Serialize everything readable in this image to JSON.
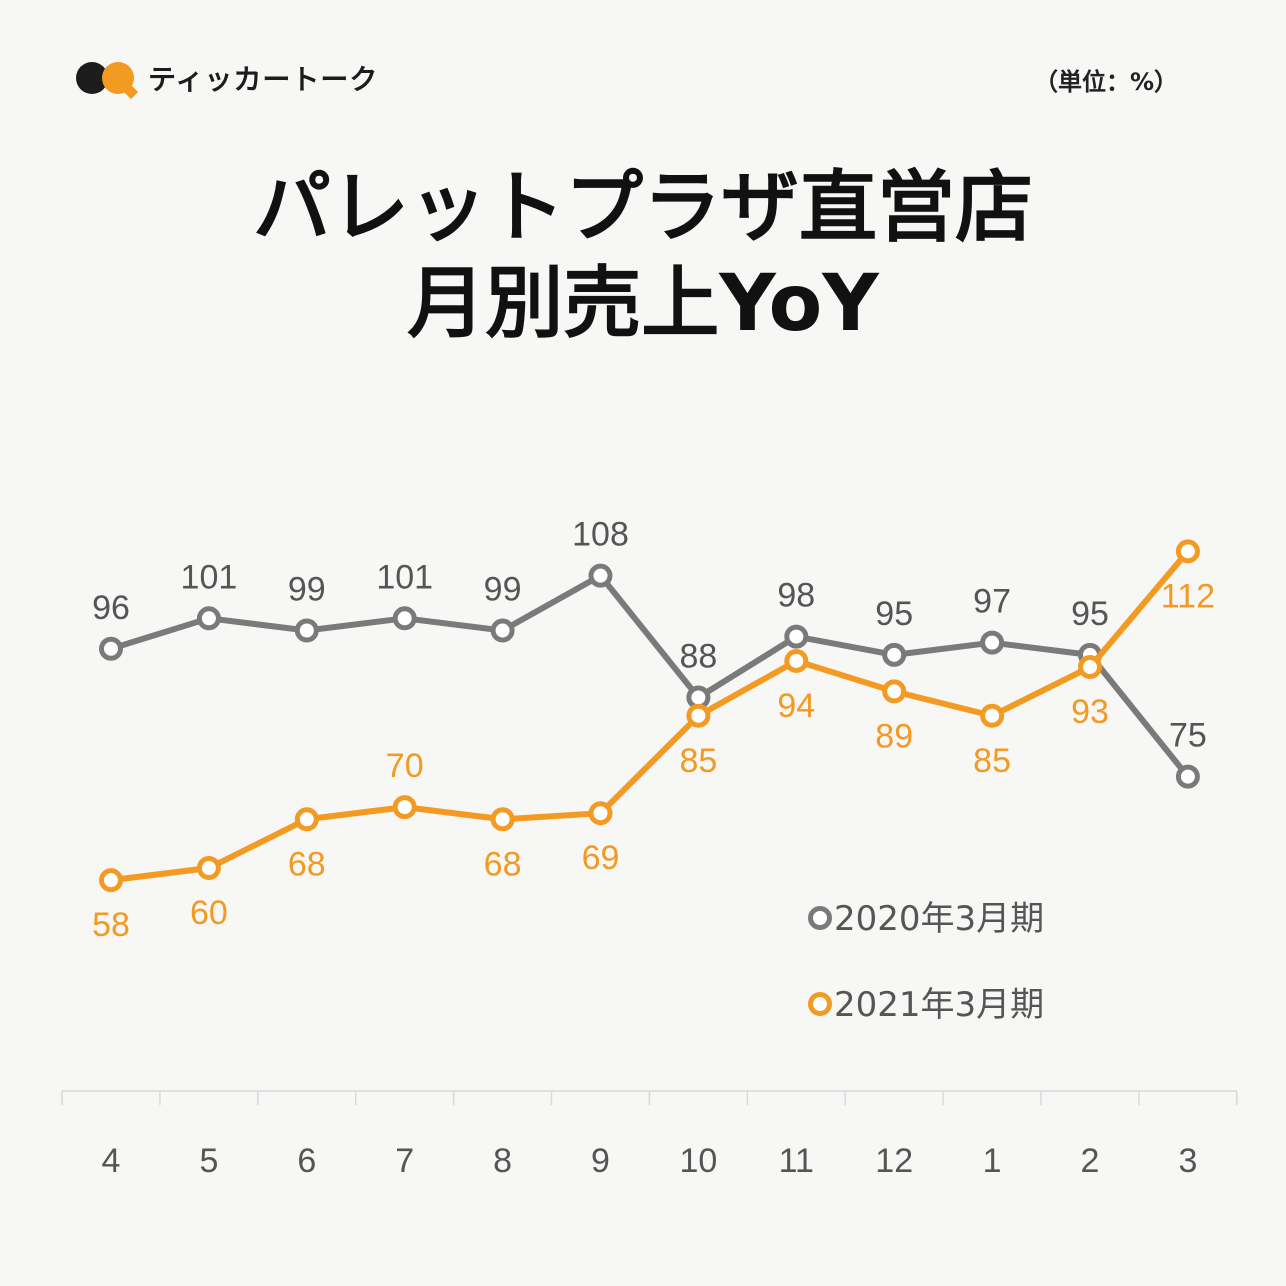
{
  "brand": {
    "name": "ティッカートーク"
  },
  "unit_label": "（単位：%）",
  "title_line1": "パレットプラザ直営店",
  "title_line2": "月別売上YoY",
  "colors": {
    "gray": "#7a7a7a",
    "orange": "#f39a23",
    "axis": "#d9d9d9"
  },
  "chart_data": {
    "type": "line",
    "title": "パレットプラザ直営店 月別売上YoY",
    "categories": [
      "4",
      "5",
      "6",
      "7",
      "8",
      "9",
      "10",
      "11",
      "12",
      "1",
      "2",
      "3"
    ],
    "series": [
      {
        "name": "2020年3月期",
        "color": "#7a7a7a",
        "values": [
          96,
          101,
          99,
          101,
          99,
          108,
          88,
          98,
          95,
          97,
          95,
          75
        ]
      },
      {
        "name": "2021年3月期",
        "color": "#f39a23",
        "values": [
          58,
          60,
          68,
          70,
          68,
          69,
          85,
          94,
          89,
          85,
          93,
          112
        ]
      }
    ],
    "label_positions": [
      [
        "above",
        "above",
        "above",
        "above",
        "above",
        "above",
        "above",
        "above",
        "above",
        "above",
        "above",
        "above"
      ],
      [
        "below",
        "below",
        "below",
        "above",
        "below",
        "below",
        "below",
        "below",
        "below",
        "below",
        "below",
        "below"
      ]
    ],
    "xlabel": "",
    "ylabel": "",
    "ylim": [
      50,
      115
    ],
    "legend_position": "bottom-right",
    "grid": false
  }
}
